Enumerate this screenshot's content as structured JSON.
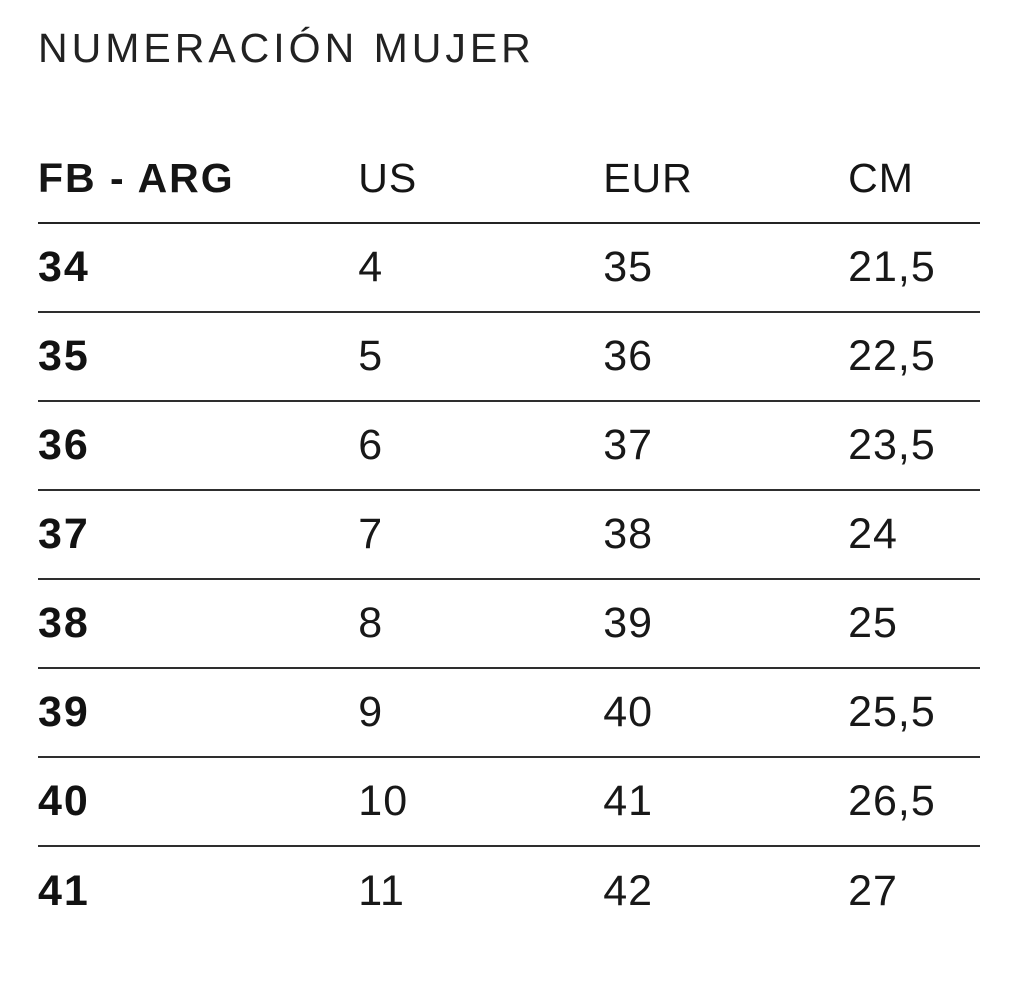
{
  "page": {
    "title": "NUMERACIÓN MUJER"
  },
  "table": {
    "headers": [
      "FB - ARG",
      "US",
      "EUR",
      "CM"
    ],
    "rows": [
      [
        "34",
        "4",
        "35",
        "21,5"
      ],
      [
        "35",
        "5",
        "36",
        "22,5"
      ],
      [
        "36",
        "6",
        "37",
        "23,5"
      ],
      [
        "37",
        "7",
        "38",
        "24"
      ],
      [
        "38",
        "8",
        "39",
        "25"
      ],
      [
        "39",
        "9",
        "40",
        "25,5"
      ],
      [
        "40",
        "10",
        "41",
        "26,5"
      ],
      [
        "41",
        "11",
        "42",
        "27"
      ]
    ]
  },
  "chart_data": {
    "type": "table",
    "title": "NUMERACIÓN MUJER",
    "columns": [
      "FB - ARG",
      "US",
      "EUR",
      "CM"
    ],
    "rows": [
      [
        "34",
        "4",
        "35",
        "21,5"
      ],
      [
        "35",
        "5",
        "36",
        "22,5"
      ],
      [
        "36",
        "6",
        "37",
        "23,5"
      ],
      [
        "37",
        "7",
        "38",
        "24"
      ],
      [
        "38",
        "8",
        "39",
        "25"
      ],
      [
        "39",
        "9",
        "40",
        "25,5"
      ],
      [
        "40",
        "10",
        "41",
        "26,5"
      ],
      [
        "41",
        "11",
        "42",
        "27"
      ]
    ]
  },
  "colors": {
    "text": "#1c1c1c",
    "line": "#2e2e2e",
    "background": "#ffffff"
  }
}
